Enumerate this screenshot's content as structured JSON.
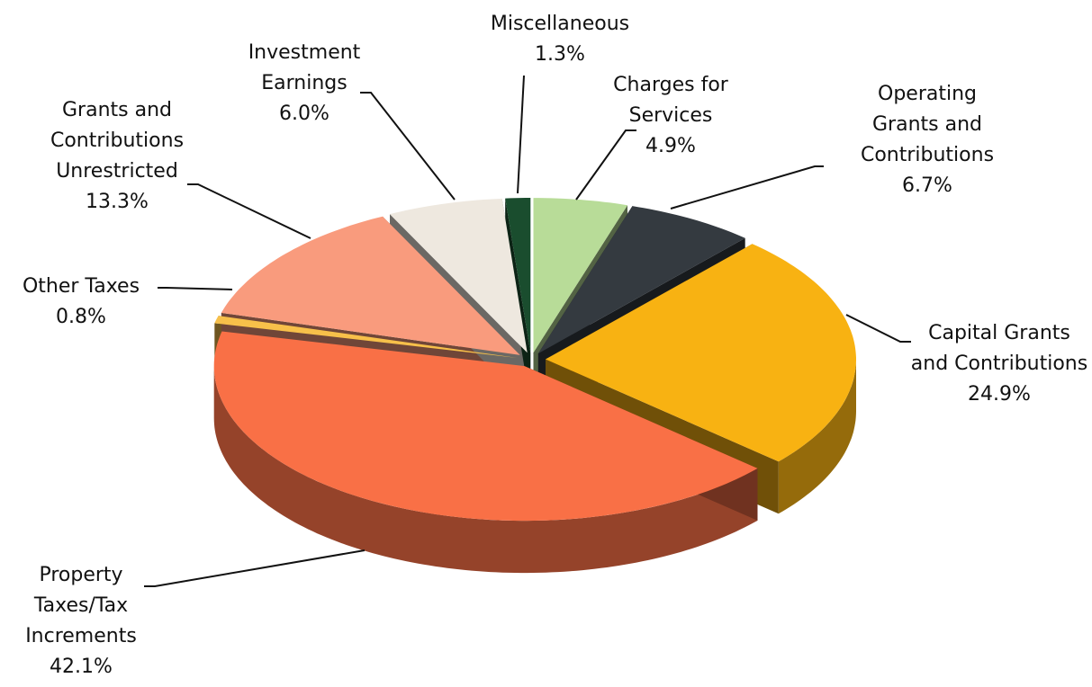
{
  "chart_data": {
    "type": "pie3d",
    "categories": [
      "Charges for Services",
      "Operating Grants and Contributions",
      "Capital Grants and Contributions",
      "Property Taxes/Tax Increments",
      "Other Taxes",
      "Grants and Contributions Unrestricted",
      "Investment Earnings",
      "Miscellaneous"
    ],
    "values": [
      4.9,
      6.7,
      24.9,
      42.1,
      0.8,
      13.3,
      6.0,
      1.3
    ],
    "value_labels": [
      "4.9%",
      "6.7%",
      "24.9%",
      "42.1%",
      "0.8%",
      "13.3%",
      "6.0%",
      "1.3%"
    ],
    "colors": [
      "#b8dc98",
      "#343a40",
      "#f8b212",
      "#f97046",
      "#f7c04a",
      "#f99b7d",
      "#eee8df",
      "#1a4d2e"
    ]
  }
}
